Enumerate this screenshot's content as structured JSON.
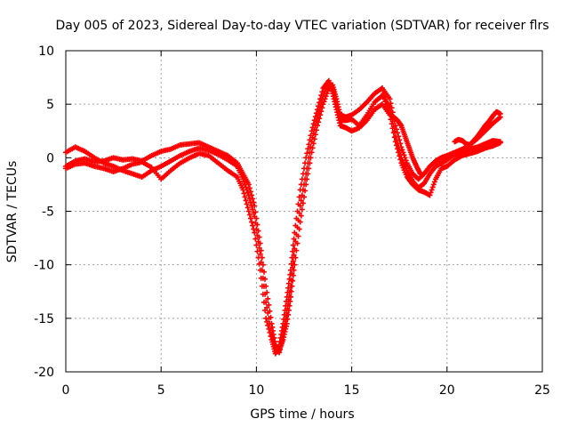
{
  "chart_data": {
    "type": "scatter",
    "title": "Day 005 of 2023, Sidereal Day-to-day VTEC variation (SDTVAR) for receiver flrs",
    "xlabel": "GPS time / hours",
    "ylabel": "SDTVAR / TECUs",
    "xlim": [
      0,
      25
    ],
    "ylim": [
      -20,
      10
    ],
    "xticks": [
      0,
      5,
      10,
      15,
      20,
      25
    ],
    "yticks": [
      -20,
      -15,
      -10,
      -5,
      0,
      5,
      10
    ],
    "grid": true,
    "marker": "+",
    "color": "#ff0000",
    "series": [
      {
        "x": [
          0.0,
          0.5,
          1.0,
          1.5,
          2.0,
          2.5,
          3.0,
          3.5,
          4.0,
          4.5,
          5.0,
          5.5,
          6.0,
          6.5,
          7.0,
          7.5,
          8.0,
          8.5,
          9.0,
          9.3,
          9.6,
          9.9,
          10.2,
          10.5,
          10.8,
          11.0,
          11.2,
          11.4,
          11.6,
          11.8,
          12.0,
          12.3,
          12.6,
          12.9,
          13.2,
          13.5,
          13.8,
          14.0,
          14.2,
          14.4,
          14.7,
          15.0,
          15.4,
          15.8,
          16.2,
          16.6,
          17.0,
          17.3,
          17.6,
          17.9,
          18.2,
          18.5,
          18.8,
          19.1,
          19.4,
          19.7,
          20.0,
          20.4,
          20.8,
          21.2,
          21.6,
          22.0,
          22.4,
          22.8
        ],
        "y": [
          -0.8,
          -0.3,
          -0.1,
          -0.4,
          -0.3,
          0.0,
          -0.2,
          -0.1,
          -0.3,
          0.2,
          0.6,
          0.8,
          1.2,
          1.3,
          1.4,
          1.0,
          0.6,
          0.2,
          -0.5,
          -1.5,
          -2.5,
          -4.5,
          -8.0,
          -12.0,
          -15.5,
          -17.5,
          -18.0,
          -17.0,
          -15.5,
          -13.0,
          -10.0,
          -6.0,
          -2.5,
          0.5,
          3.0,
          5.0,
          6.5,
          6.8,
          5.5,
          4.0,
          3.8,
          4.0,
          4.5,
          5.2,
          6.0,
          6.5,
          5.5,
          3.0,
          1.0,
          -0.5,
          -1.5,
          -2.0,
          -1.5,
          -0.8,
          -0.3,
          0.0,
          0.2,
          0.5,
          0.8,
          1.2,
          1.8,
          2.5,
          3.2,
          3.8
        ]
      },
      {
        "x": [
          0.0,
          0.5,
          1.0,
          1.5,
          2.0,
          2.5,
          3.0,
          3.5,
          4.0,
          4.5,
          5.0,
          5.5,
          6.0,
          6.5,
          7.0,
          7.5,
          8.0,
          8.5,
          9.0,
          9.3,
          9.6,
          9.9,
          10.2,
          10.5,
          10.8,
          11.0,
          11.2,
          11.4,
          11.6,
          11.8,
          12.0,
          12.3,
          12.6,
          12.9,
          13.2,
          13.5,
          13.8,
          14.0,
          14.2,
          14.4,
          14.7,
          15.0,
          15.4,
          15.8,
          16.2,
          16.6,
          17.0,
          17.3,
          17.6,
          17.9,
          18.2,
          18.5,
          18.8,
          19.1,
          19.4,
          19.7,
          20.0,
          20.4,
          20.8,
          21.2,
          21.6,
          22.0,
          22.4,
          22.8
        ],
        "y": [
          0.5,
          1.0,
          0.6,
          0.0,
          -0.5,
          -0.8,
          -1.2,
          -1.5,
          -1.8,
          -1.2,
          -0.8,
          -0.3,
          0.2,
          0.6,
          0.9,
          0.7,
          0.3,
          -0.2,
          -0.8,
          -2.0,
          -3.5,
          -5.5,
          -9.0,
          -13.5,
          -16.5,
          -17.8,
          -18.2,
          -16.5,
          -14.5,
          -12.0,
          -8.5,
          -4.5,
          -1.5,
          1.5,
          3.8,
          5.8,
          7.0,
          6.5,
          5.0,
          3.5,
          3.5,
          3.6,
          3.0,
          4.0,
          5.2,
          5.8,
          4.8,
          2.0,
          0.0,
          -1.2,
          -2.2,
          -2.8,
          -2.4,
          -1.5,
          -0.8,
          -0.5,
          -0.2,
          0.3,
          0.6,
          0.8,
          1.0,
          1.3,
          1.6,
          1.5
        ]
      },
      {
        "x": [
          0.0,
          0.5,
          1.0,
          1.5,
          2.0,
          2.5,
          3.0,
          3.5,
          4.0,
          4.5,
          5.0,
          5.5,
          6.0,
          6.5,
          7.0,
          7.5,
          8.0,
          8.5,
          9.0,
          9.3,
          9.6,
          9.9,
          10.2,
          10.5,
          10.8,
          11.0,
          11.2,
          11.4,
          11.6,
          11.8,
          12.0,
          12.3,
          12.6,
          12.9,
          13.2,
          13.5,
          13.8,
          14.0,
          14.2,
          14.4,
          14.7,
          15.0,
          15.4,
          15.8,
          16.2,
          16.6,
          17.0,
          17.3,
          17.6,
          17.9,
          18.2,
          18.5,
          18.8,
          19.1,
          19.4,
          19.7,
          20.0,
          20.4,
          20.8,
          21.2,
          21.6,
          22.0,
          22.4,
          22.8
        ],
        "y": [
          -1.0,
          -0.6,
          -0.5,
          -0.8,
          -1.0,
          -1.3,
          -1.0,
          -0.6,
          -0.4,
          -0.9,
          -2.0,
          -1.2,
          -0.5,
          0.0,
          0.4,
          0.2,
          -0.5,
          -1.2,
          -1.8,
          -3.0,
          -5.0,
          -7.0,
          -10.5,
          -15.0,
          -17.0,
          -18.3,
          -17.5,
          -15.5,
          -13.0,
          -10.5,
          -7.0,
          -3.0,
          0.0,
          2.5,
          4.5,
          6.5,
          7.2,
          6.0,
          4.5,
          3.0,
          2.8,
          2.5,
          2.8,
          3.5,
          4.5,
          5.0,
          4.0,
          1.5,
          -0.5,
          -1.8,
          -2.5,
          -3.0,
          -3.2,
          -3.5,
          -2.0,
          -1.0,
          -0.8,
          -0.2,
          0.2,
          0.4,
          0.6,
          0.9,
          1.1,
          1.4
        ]
      },
      {
        "x": [
          16.6,
          16.8,
          17.0,
          17.2,
          17.4,
          17.6,
          17.8,
          18.0,
          18.2,
          18.4,
          18.6
        ],
        "y": [
          6.5,
          5.0,
          4.0,
          3.8,
          3.5,
          3.0,
          2.0,
          1.0,
          0.0,
          -0.8,
          -1.5
        ]
      },
      {
        "x": [
          20.4,
          20.6,
          20.8,
          21.0,
          21.2,
          21.4,
          21.6,
          21.8,
          22.0,
          22.2,
          22.4,
          22.6,
          22.8
        ],
        "y": [
          1.5,
          1.7,
          1.6,
          1.3,
          1.2,
          1.6,
          2.0,
          2.5,
          3.0,
          3.4,
          3.9,
          4.3,
          4.1
        ]
      }
    ]
  }
}
